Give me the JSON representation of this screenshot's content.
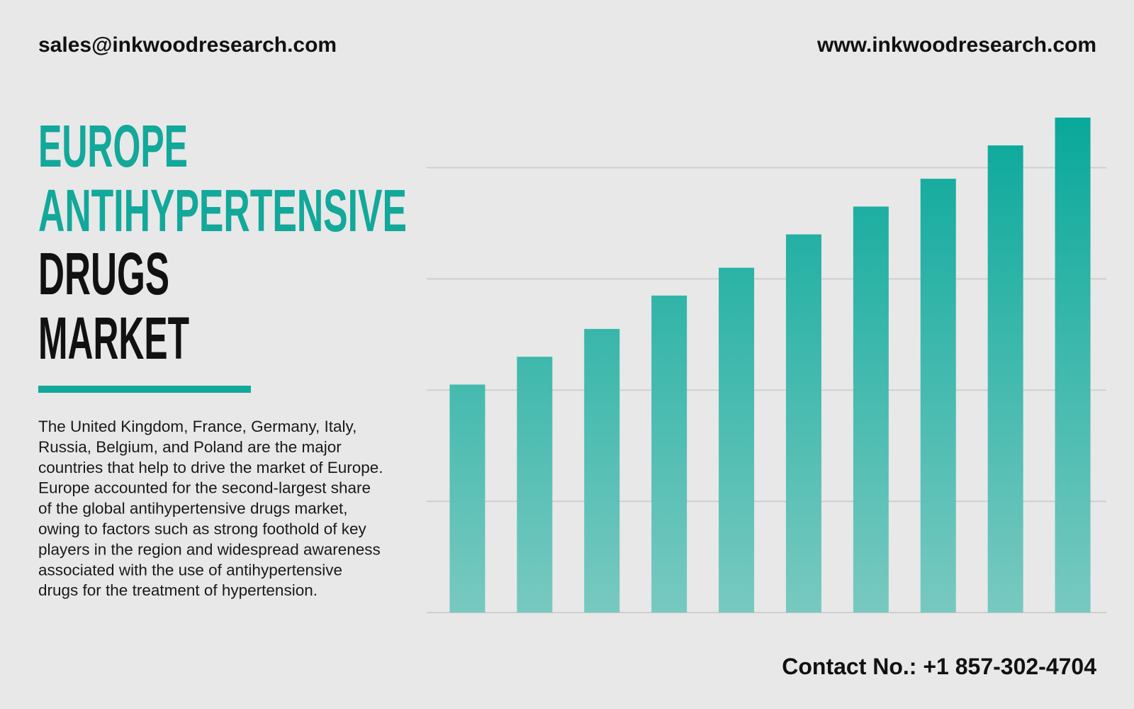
{
  "header": {
    "email": "sales@inkwoodresearch.com",
    "website": "www.inkwoodresearch.com"
  },
  "title": {
    "lines": [
      "EUROPE",
      "ANTIHYPERTENSIVE",
      "DRUGS",
      "MARKET"
    ]
  },
  "paragraph": [
    "The United Kingdom, France, Germany, Italy,",
    "Russia, Belgium, and Poland are the major",
    "countries that help to drive the market of Europe.",
    "Europe accounted for the second-largest share",
    "of the global antihypertensive drugs market,",
    "owing to factors such as strong foothold of key",
    "players in the region and widespread awareness",
    "associated with the use of antihypertensive",
    "drugs for the treatment of hypertension."
  ],
  "footer": {
    "contact": "Contact No.: +1 857-302-4704"
  },
  "chart_data": {
    "type": "bar",
    "values": [
      2.05,
      2.3,
      2.55,
      2.85,
      3.1,
      3.4,
      3.65,
      3.9,
      4.2,
      4.45
    ],
    "color_top": "#08a89a",
    "color_bottom": "#78c9c0",
    "ylim": [
      0,
      4.5
    ],
    "yticks": [
      0,
      1,
      2,
      3,
      4
    ],
    "grid": true
  }
}
